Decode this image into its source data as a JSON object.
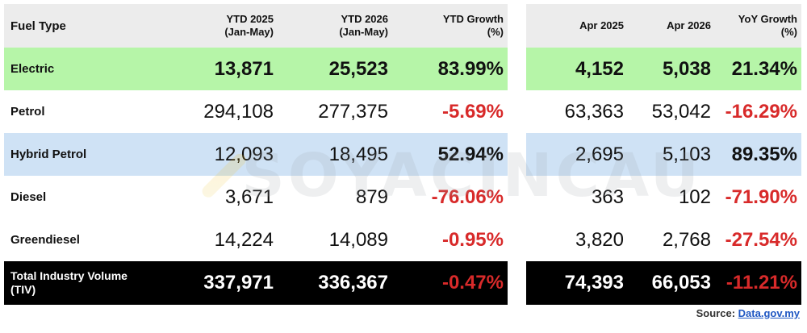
{
  "headers": {
    "fuel_type": "Fuel Type",
    "ytd2025": [
      "YTD 2025",
      "(Jan-May)"
    ],
    "ytd2026": [
      "YTD 2026",
      "(Jan-May)"
    ],
    "ytd_growth": [
      "YTD Growth",
      "(%)"
    ],
    "apr2025": "Apr 2025",
    "apr2026": "Apr 2026",
    "yoy_growth": [
      "YoY Growth",
      "(%)"
    ]
  },
  "rows": [
    {
      "label": "Electric",
      "ytd2025": "13,871",
      "ytd2026": "25,523",
      "ytd_growth": "83.99%",
      "apr2025": "4,152",
      "apr2026": "5,038",
      "yoy_growth": "21.34%"
    },
    {
      "label": "Petrol",
      "ytd2025": "294,108",
      "ytd2026": "277,375",
      "ytd_growth": "-5.69%",
      "apr2025": "63,363",
      "apr2026": "53,042",
      "yoy_growth": "-16.29%"
    },
    {
      "label": "Hybrid Petrol",
      "ytd2025": "12,093",
      "ytd2026": "18,495",
      "ytd_growth": "52.94%",
      "apr2025": "2,695",
      "apr2026": "5,103",
      "yoy_growth": "89.35%"
    },
    {
      "label": "Diesel",
      "ytd2025": "3,671",
      "ytd2026": "879",
      "ytd_growth": "-76.06%",
      "apr2025": "363",
      "apr2026": "102",
      "yoy_growth": "-71.90%"
    },
    {
      "label": "Greendiesel",
      "ytd2025": "14,224",
      "ytd2026": "14,089",
      "ytd_growth": "-0.95%",
      "apr2025": "3,820",
      "apr2026": "2,768",
      "yoy_growth": "-27.54%"
    },
    {
      "label": [
        "Total Industry Volume",
        "(TIV)"
      ],
      "ytd2025": "337,971",
      "ytd2026": "336,367",
      "ytd_growth": "-0.47%",
      "apr2025": "74,393",
      "apr2026": "66,053",
      "yoy_growth": "-11.21%"
    }
  ],
  "colors": {
    "header_bg": "#ececec",
    "electric_bg": "#b6f5a8",
    "hybrid_bg": "#cfe2f5",
    "total_bg": "#000000",
    "negative": "#d82a2a",
    "link": "#1f57c3"
  },
  "source": {
    "label": "Source:",
    "link_text": "Data.gov.my"
  },
  "watermark": {
    "text": "SOYACINCAU"
  }
}
